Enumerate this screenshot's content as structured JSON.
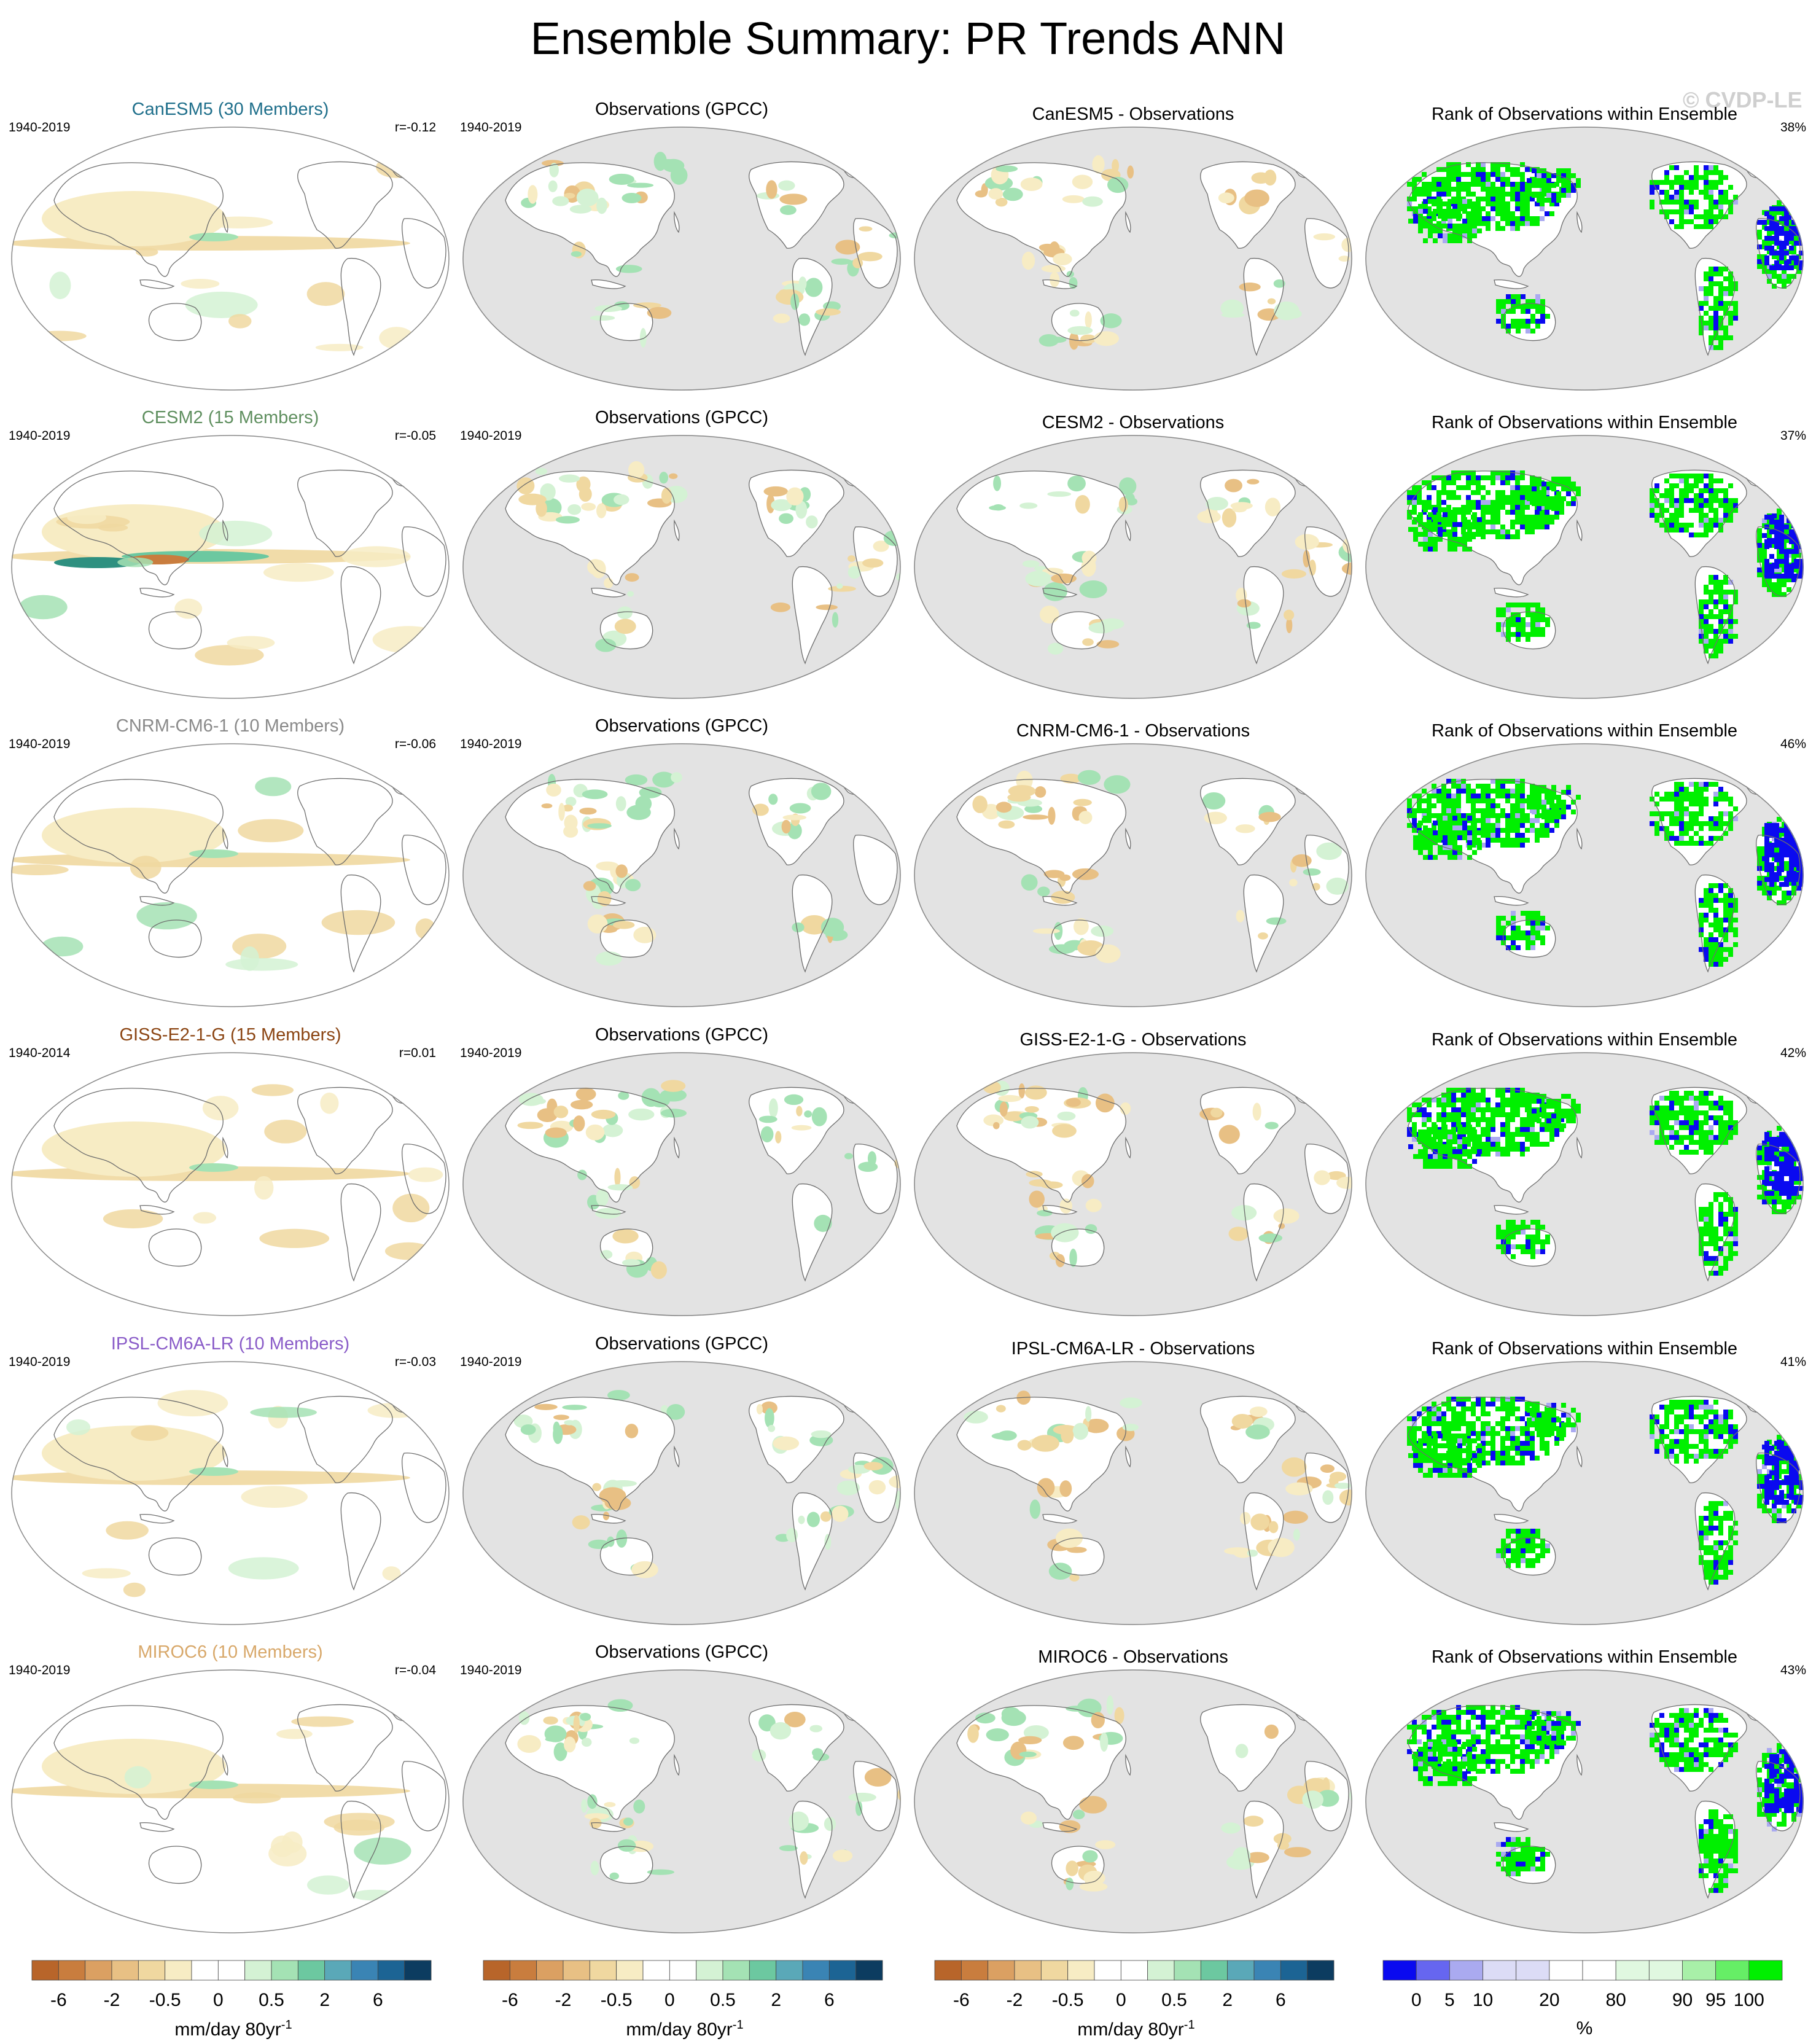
{
  "title": "Ensemble Summary: PR Trends ANN",
  "watermark": "© CVDP-LE",
  "colors": {
    "land_gray": "#e3e3e3",
    "coast": "#6d6d6d",
    "rank_green": "#00f000",
    "rank_blue": "#0a0af0"
  },
  "rows": [
    {
      "model": {
        "title": "CanESM5 (30 Members)",
        "title_color": "#1f6f8b",
        "period": "1940-2019",
        "corr": "r=-0.12"
      },
      "obs": {
        "title": "Observations (GPCC)",
        "period": "1940-2019"
      },
      "diff": {
        "title": "CanESM5 - Observations"
      },
      "rank": {
        "title": "Rank of Observations within Ensemble",
        "pct": "38%"
      }
    },
    {
      "model": {
        "title": "CESM2 (15 Members)",
        "title_color": "#5f8f5f",
        "period": "1940-2019",
        "corr": "r=-0.05"
      },
      "obs": {
        "title": "Observations (GPCC)",
        "period": "1940-2019"
      },
      "diff": {
        "title": "CESM2 - Observations"
      },
      "rank": {
        "title": "Rank of Observations within Ensemble",
        "pct": "37%"
      }
    },
    {
      "model": {
        "title": "CNRM-CM6-1 (10 Members)",
        "title_color": "#8a8a8a",
        "period": "1940-2019",
        "corr": "r=-0.06"
      },
      "obs": {
        "title": "Observations (GPCC)",
        "period": "1940-2019"
      },
      "diff": {
        "title": "CNRM-CM6-1 - Observations"
      },
      "rank": {
        "title": "Rank of Observations within Ensemble",
        "pct": "46%"
      }
    },
    {
      "model": {
        "title": "GISS-E2-1-G (15 Members)",
        "title_color": "#8b4513",
        "period": "1940-2014",
        "corr": "r=0.01"
      },
      "obs": {
        "title": "Observations (GPCC)",
        "period": "1940-2019"
      },
      "diff": {
        "title": "GISS-E2-1-G - Observations"
      },
      "rank": {
        "title": "Rank of Observations within Ensemble",
        "pct": "42%"
      }
    },
    {
      "model": {
        "title": "IPSL-CM6A-LR (10 Members)",
        "title_color": "#8a5cc8",
        "period": "1940-2019",
        "corr": "r=-0.03"
      },
      "obs": {
        "title": "Observations (GPCC)",
        "period": "1940-2019"
      },
      "diff": {
        "title": "IPSL-CM6A-LR - Observations"
      },
      "rank": {
        "title": "Rank of Observations within Ensemble",
        "pct": "41%"
      }
    },
    {
      "model": {
        "title": "MIROC6 (10 Members)",
        "title_color": "#d8a86a",
        "period": "1940-2019",
        "corr": "r=-0.04"
      },
      "obs": {
        "title": "Observations (GPCC)",
        "period": "1940-2019"
      },
      "diff": {
        "title": "MIROC6 - Observations"
      },
      "rank": {
        "title": "Rank of Observations within Ensemble",
        "pct": "43%"
      }
    }
  ],
  "colorbars": {
    "trend": {
      "colors": [
        "#b8652a",
        "#c97d3e",
        "#dba062",
        "#e8c084",
        "#f0d8a0",
        "#f7ecc4",
        "#ffffff",
        "#ffffff",
        "#d4f2d4",
        "#a4e2b4",
        "#6cc8a0",
        "#5aa8b8",
        "#3a84b4",
        "#1c6494",
        "#0c3c60"
      ],
      "labels": [
        "-6",
        "-2",
        "-0.5",
        "0",
        "0.5",
        "2",
        "6"
      ],
      "label_positions": [
        1,
        3,
        5,
        7,
        9,
        11,
        13
      ],
      "title": "mm/day 80yr",
      "title_sup": "-1"
    },
    "rank": {
      "colors": [
        "#0a0af0",
        "#6666f0",
        "#aaaaf0",
        "#dcdcf6",
        "#dcdcf6",
        "#ffffff",
        "#ffffff",
        "#e0f8e0",
        "#e0f8e0",
        "#a8f0a8",
        "#66ee66",
        "#00f000"
      ],
      "labels": [
        "0",
        "5",
        "10",
        "20",
        "80",
        "90",
        "95",
        "100"
      ],
      "label_positions": [
        1,
        2,
        3,
        5,
        7,
        9,
        10,
        11
      ],
      "title": "%"
    }
  },
  "chart_data": [
    {
      "type": "heatmap",
      "title": "Ensemble Summary: PR Trends ANN",
      "description": "6 rows x 4 columns of global maps (ensemble-mean trend, GPCC observed trend, difference, rank of observations within ensemble)",
      "models": [
        "CanESM5",
        "CESM2",
        "CNRM-CM6-1",
        "GISS-E2-1-G",
        "IPSL-CM6A-LR",
        "MIROC6"
      ],
      "members": [
        30,
        15,
        10,
        15,
        10,
        10
      ],
      "pattern_correlation": [
        -0.12,
        -0.05,
        -0.06,
        0.01,
        -0.03,
        -0.04
      ],
      "rank_area_percent": [
        38,
        37,
        46,
        42,
        41,
        43
      ],
      "trend_contour_levels": [
        -6,
        -2,
        -0.5,
        0,
        0.5,
        2,
        6
      ],
      "trend_units": "mm/day 80yr-1",
      "rank_levels": [
        0,
        5,
        10,
        20,
        80,
        90,
        95,
        100
      ],
      "rank_units": "%"
    }
  ]
}
